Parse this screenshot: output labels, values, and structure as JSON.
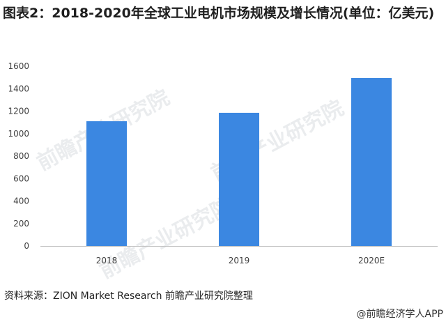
{
  "title": "图表2：2018-2020年全球工业电机市场规模及增长情况(单位：亿美元)",
  "source": "资料来源：ZION Market Research 前瞻产业研究院整理",
  "footer": "@前瞻经济学人APP",
  "watermark": "前瞻产业研究院",
  "colors": {
    "bar": "#3b87e1",
    "axis": "#bfbfbf"
  },
  "chart_data": {
    "type": "bar",
    "categories": [
      "2018",
      "2019",
      "2020E"
    ],
    "values": [
      1110,
      1185,
      1495
    ],
    "ylim": [
      0,
      1600
    ],
    "yticks": [
      0,
      200,
      400,
      600,
      800,
      1000,
      1200,
      1400,
      1600
    ],
    "grid": false,
    "xlabel": "",
    "ylabel": ""
  }
}
